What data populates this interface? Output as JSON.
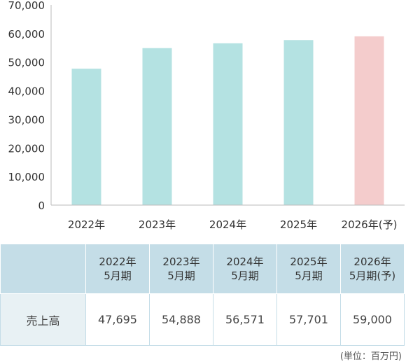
{
  "chart_data": {
    "type": "bar",
    "categories": [
      "2022年",
      "2023年",
      "2024年",
      "2025年",
      "2026年(予)"
    ],
    "values": [
      47695,
      54888,
      56571,
      57701,
      59000
    ],
    "bar_colors": [
      "#b4e2e2",
      "#b4e2e2",
      "#b4e2e2",
      "#b4e2e2",
      "#f4cccc"
    ],
    "ylim": [
      0,
      70000
    ],
    "yticks": [
      0,
      10000,
      20000,
      30000,
      40000,
      50000,
      60000,
      70000
    ],
    "ytick_labels": [
      "0",
      "10,000",
      "20,000",
      "30,000",
      "40,000",
      "50,000",
      "60,000",
      "70,000"
    ],
    "grid": false,
    "title": "",
    "xlabel": "",
    "ylabel": ""
  },
  "table": {
    "headers": [
      {
        "line1": "2022年",
        "line2": "5月期"
      },
      {
        "line1": "2023年",
        "line2": "5月期"
      },
      {
        "line1": "2024年",
        "line2": "5月期"
      },
      {
        "line1": "2025年",
        "line2": "5月期"
      },
      {
        "line1": "2026年",
        "line2": "5月期(予)"
      }
    ],
    "row_label": "売上高",
    "values": [
      "47,695",
      "54,888",
      "56,571",
      "57,701",
      "59,000"
    ],
    "header_color": "#c4dde7",
    "row_label_color": "#e8f1f4"
  },
  "unit_note": "(単位：百万円)"
}
